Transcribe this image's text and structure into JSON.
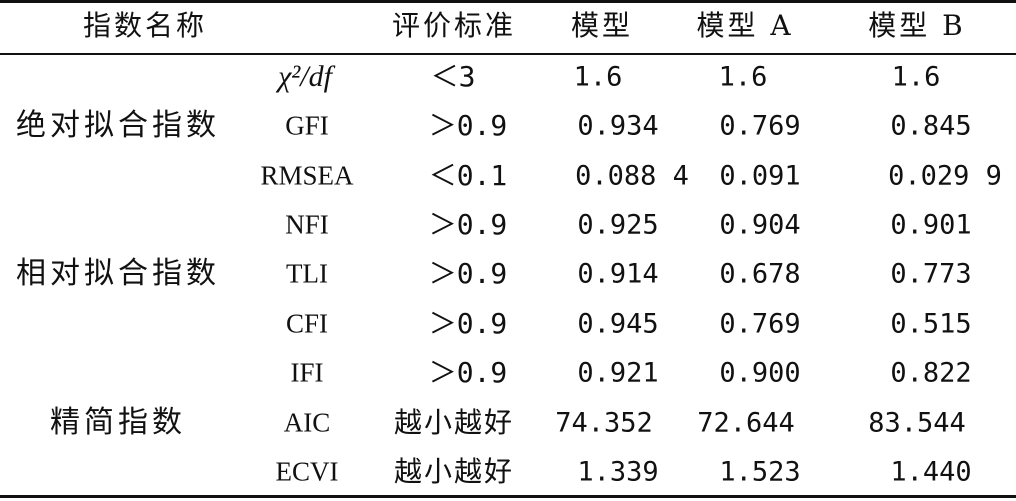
{
  "header": {
    "col_name": "指数名称",
    "col_criterion": "评价标准",
    "col_model": "模型",
    "col_model_a": "模型 A",
    "col_model_b": "模型 B"
  },
  "groups": {
    "absolute": "绝对拟合指数",
    "relative": "相对拟合指数",
    "parsimony": "精简指数"
  },
  "rows": [
    {
      "index": "χ²/df",
      "criterion": "＜3",
      "model": "1.6",
      "model_a": "1.6",
      "model_b": "1.6"
    },
    {
      "index": "GFI",
      "criterion": "＞0.9",
      "model": "0.934",
      "model_a": "0.769",
      "model_b": "0.845"
    },
    {
      "index": "RMSEA",
      "criterion": "＜0.1",
      "model": "0.088 4",
      "model_a": "0.091",
      "model_b": "0.029 9"
    },
    {
      "index": "NFI",
      "criterion": "＞0.9",
      "model": "0.925",
      "model_a": "0.904",
      "model_b": "0.901"
    },
    {
      "index": "TLI",
      "criterion": "＞0.9",
      "model": "0.914",
      "model_a": "0.678",
      "model_b": "0.773"
    },
    {
      "index": "CFI",
      "criterion": "＞0.9",
      "model": "0.945",
      "model_a": "0.769",
      "model_b": "0.515"
    },
    {
      "index": "IFI",
      "criterion": "＞0.9",
      "model": "0.921",
      "model_a": "0.900",
      "model_b": "0.822"
    },
    {
      "index": "AIC",
      "criterion": "越小越好",
      "model": "74.352",
      "model_a": "72.644",
      "model_b": "83.544"
    },
    {
      "index": "ECVI",
      "criterion": "越小越好",
      "model": "1.339",
      "model_a": "1.523",
      "model_b": "1.440"
    }
  ]
}
